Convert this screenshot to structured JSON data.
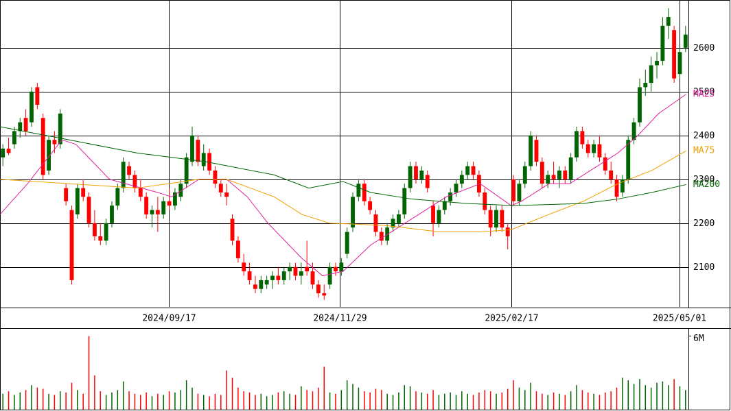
{
  "chart_data": [
    {
      "type": "candlestick",
      "up_color": "#006400",
      "down_color": "#ff0000",
      "xlim": [
        0,
        120
      ],
      "xticks": [
        {
          "value": 29.4,
          "label": "2024/09/17"
        },
        {
          "value": 59.2,
          "label": "2024/11/29"
        },
        {
          "value": 89.1,
          "label": "2025/02/17"
        },
        {
          "value": 118.5,
          "label": "2025/05/01"
        }
      ],
      "ylim": [
        2009,
        2709
      ],
      "yticks": [
        2100,
        2200,
        2300,
        2400,
        2500,
        2600
      ],
      "grid": true,
      "ohlc": [
        [
          2350,
          2380,
          2330,
          2370
        ],
        [
          2370,
          2395,
          2355,
          2360
        ],
        [
          2380,
          2420,
          2370,
          2410
        ],
        [
          2410,
          2440,
          2395,
          2430
        ],
        [
          2440,
          2460,
          2400,
          2410
        ],
        [
          2430,
          2510,
          2420,
          2500
        ],
        [
          2510,
          2520,
          2460,
          2470
        ],
        [
          2440,
          2450,
          2300,
          2310
        ],
        [
          2320,
          2400,
          2310,
          2390
        ],
        [
          2390,
          2410,
          2360,
          2380
        ],
        [
          2380,
          2460,
          2370,
          2450
        ],
        [
          2280,
          2290,
          2240,
          2250
        ],
        [
          2230,
          2240,
          2060,
          2070
        ],
        [
          2220,
          2290,
          2210,
          2280
        ],
        [
          2280,
          2300,
          2250,
          2260
        ],
        [
          2260,
          2270,
          2190,
          2200
        ],
        [
          2200,
          2230,
          2160,
          2170
        ],
        [
          2170,
          2200,
          2150,
          2160
        ],
        [
          2160,
          2210,
          2150,
          2200
        ],
        [
          2200,
          2250,
          2190,
          2240
        ],
        [
          2240,
          2290,
          2230,
          2280
        ],
        [
          2280,
          2350,
          2270,
          2340
        ],
        [
          2330,
          2340,
          2300,
          2310
        ],
        [
          2310,
          2320,
          2270,
          2280
        ],
        [
          2280,
          2300,
          2250,
          2260
        ],
        [
          2260,
          2270,
          2210,
          2220
        ],
        [
          2220,
          2240,
          2190,
          2230
        ],
        [
          2230,
          2260,
          2180,
          2220
        ],
        [
          2220,
          2260,
          2210,
          2250
        ],
        [
          2250,
          2280,
          2230,
          2240
        ],
        [
          2240,
          2280,
          2230,
          2270
        ],
        [
          2260,
          2300,
          2250,
          2290
        ],
        [
          2290,
          2360,
          2280,
          2350
        ],
        [
          2340,
          2420,
          2330,
          2400
        ],
        [
          2390,
          2400,
          2330,
          2340
        ],
        [
          2330,
          2380,
          2320,
          2360
        ],
        [
          2360,
          2370,
          2310,
          2320
        ],
        [
          2320,
          2330,
          2280,
          2290
        ],
        [
          2290,
          2300,
          2260,
          2270
        ],
        [
          2270,
          2290,
          2240,
          2260
        ],
        [
          2210,
          2220,
          2150,
          2160
        ],
        [
          2160,
          2170,
          2110,
          2120
        ],
        [
          2110,
          2130,
          2080,
          2090
        ],
        [
          2090,
          2110,
          2060,
          2070
        ],
        [
          2060,
          2080,
          2040,
          2050
        ],
        [
          2050,
          2080,
          2040,
          2070
        ],
        [
          2060,
          2080,
          2050,
          2070
        ],
        [
          2070,
          2090,
          2050,
          2080
        ],
        [
          2080,
          2100,
          2060,
          2070
        ],
        [
          2070,
          2100,
          2060,
          2090
        ],
        [
          2090,
          2110,
          2070,
          2100
        ],
        [
          2100,
          2110,
          2070,
          2080
        ],
        [
          2080,
          2110,
          2060,
          2090
        ],
        [
          2100,
          2160,
          2080,
          2090
        ],
        [
          2090,
          2110,
          2050,
          2060
        ],
        [
          2060,
          2070,
          2030,
          2040
        ],
        [
          2040,
          2060,
          2025,
          2035
        ],
        [
          2060,
          2110,
          2050,
          2100
        ],
        [
          2100,
          2110,
          2080,
          2090
        ],
        [
          2090,
          2120,
          2080,
          2110
        ],
        [
          2130,
          2190,
          2120,
          2180
        ],
        [
          2190,
          2270,
          2180,
          2260
        ],
        [
          2260,
          2300,
          2250,
          2290
        ],
        [
          2290,
          2300,
          2240,
          2250
        ],
        [
          2250,
          2260,
          2220,
          2230
        ],
        [
          2220,
          2230,
          2170,
          2180
        ],
        [
          2180,
          2190,
          2150,
          2160
        ],
        [
          2160,
          2200,
          2150,
          2190
        ],
        [
          2190,
          2220,
          2180,
          2210
        ],
        [
          2200,
          2230,
          2190,
          2220
        ],
        [
          2220,
          2290,
          2210,
          2280
        ],
        [
          2280,
          2340,
          2270,
          2330
        ],
        [
          2330,
          2340,
          2290,
          2300
        ],
        [
          2300,
          2330,
          2290,
          2320
        ],
        [
          2310,
          2320,
          2270,
          2280
        ],
        [
          2240,
          2250,
          2170,
          2200
        ],
        [
          2200,
          2240,
          2190,
          2230
        ],
        [
          2230,
          2260,
          2220,
          2250
        ],
        [
          2250,
          2280,
          2240,
          2270
        ],
        [
          2270,
          2300,
          2260,
          2290
        ],
        [
          2290,
          2320,
          2280,
          2310
        ],
        [
          2310,
          2340,
          2300,
          2330
        ],
        [
          2330,
          2340,
          2300,
          2310
        ],
        [
          2310,
          2320,
          2260,
          2270
        ],
        [
          2270,
          2280,
          2220,
          2230
        ],
        [
          2230,
          2240,
          2170,
          2190
        ],
        [
          2190,
          2240,
          2180,
          2230
        ],
        [
          2230,
          2240,
          2180,
          2190
        ],
        [
          2190,
          2200,
          2140,
          2170
        ],
        [
          2300,
          2310,
          2240,
          2250
        ],
        [
          2250,
          2300,
          2240,
          2290
        ],
        [
          2290,
          2340,
          2280,
          2330
        ],
        [
          2330,
          2410,
          2320,
          2400
        ],
        [
          2390,
          2400,
          2330,
          2340
        ],
        [
          2340,
          2350,
          2280,
          2290
        ],
        [
          2290,
          2320,
          2280,
          2310
        ],
        [
          2310,
          2340,
          2290,
          2300
        ],
        [
          2300,
          2330,
          2280,
          2320
        ],
        [
          2320,
          2330,
          2290,
          2300
        ],
        [
          2300,
          2360,
          2290,
          2350
        ],
        [
          2350,
          2420,
          2340,
          2410
        ],
        [
          2410,
          2420,
          2370,
          2380
        ],
        [
          2380,
          2390,
          2350,
          2360
        ],
        [
          2360,
          2390,
          2350,
          2380
        ],
        [
          2380,
          2400,
          2340,
          2350
        ],
        [
          2350,
          2360,
          2310,
          2320
        ],
        [
          2320,
          2340,
          2290,
          2300
        ],
        [
          2300,
          2310,
          2250,
          2260
        ],
        [
          2270,
          2310,
          2260,
          2300
        ],
        [
          2300,
          2400,
          2290,
          2390
        ],
        [
          2390,
          2440,
          2380,
          2430
        ],
        [
          2430,
          2530,
          2420,
          2510
        ],
        [
          2510,
          2550,
          2490,
          2520
        ],
        [
          2520,
          2580,
          2500,
          2560
        ],
        [
          2560,
          2590,
          2530,
          2570
        ],
        [
          2570,
          2670,
          2560,
          2650
        ],
        [
          2650,
          2690,
          2620,
          2670
        ],
        [
          2640,
          2650,
          2520,
          2530
        ],
        [
          2540,
          2600,
          2530,
          2590
        ],
        [
          2600,
          2650,
          2590,
          2630
        ]
      ],
      "series": [
        {
          "name": "MA25",
          "color": "#e0209a",
          "x": [
            0,
            4.8,
            10.8,
            13.2,
            19.1,
            27.5,
            29.9,
            34.7,
            39.5,
            43.1,
            46.7,
            52.6,
            56.2,
            59.8,
            64.6,
            69.4,
            74.2,
            77.8,
            83.7,
            89.1,
            90.9,
            95.7,
            99.3,
            102.9,
            107.7,
            111.2,
            114.8,
            119.6
          ],
          "values": [
            2220,
            2290,
            2390,
            2380,
            2300,
            2270,
            2260,
            2300,
            2300,
            2260,
            2200,
            2120,
            2080,
            2090,
            2150,
            2190,
            2230,
            2260,
            2290,
            2240,
            2250,
            2290,
            2290,
            2320,
            2360,
            2400,
            2450,
            2494
          ]
        },
        {
          "name": "MA75",
          "color": "#f0a000",
          "x": [
            0,
            12,
            23.9,
            34.7,
            39.5,
            47.8,
            52.6,
            57.4,
            67,
            76.6,
            83.7,
            89.1,
            95.7,
            101.7,
            107.7,
            113.6,
            119.6
          ],
          "values": [
            2300,
            2290,
            2280,
            2300,
            2300,
            2260,
            2220,
            2200,
            2195,
            2180,
            2180,
            2185,
            2220,
            2250,
            2290,
            2320,
            2365
          ]
        },
        {
          "name": "MA200",
          "color": "#006400",
          "x": [
            0,
            12,
            23.9,
            35.9,
            47.8,
            53.8,
            59.8,
            64.6,
            71.8,
            81.3,
            89.7,
            101.7,
            107.7,
            113.6,
            119.6
          ],
          "values": [
            2420,
            2390,
            2360,
            2340,
            2310,
            2280,
            2295,
            2270,
            2255,
            2245,
            2240,
            2245,
            2255,
            2270,
            2288
          ]
        }
      ]
    },
    {
      "type": "bar",
      "xlim": [
        0,
        120
      ],
      "ylim": [
        0,
        6600000
      ],
      "yticks": [
        {
          "value": 6000000,
          "label": "6M"
        }
      ],
      "values": [
        1300000,
        1500000,
        1200000,
        1400000,
        1600000,
        2000000,
        1800000,
        1700000,
        1300000,
        1200000,
        1500000,
        1400000,
        2200000,
        1600000,
        1300000,
        6000000,
        2800000,
        1500000,
        1200000,
        1400000,
        1600000,
        2300000,
        1500000,
        1300000,
        1200000,
        1400000,
        1100000,
        1300000,
        1200000,
        1500000,
        1400000,
        1600000,
        2400000,
        1800000,
        1300000,
        1200000,
        1100000,
        1300000,
        1200000,
        3200000,
        2600000,
        1800000,
        1500000,
        1400000,
        1200000,
        1300000,
        1100000,
        1200000,
        1400000,
        1500000,
        1300000,
        1200000,
        1900000,
        1600000,
        1500000,
        1800000,
        3500000,
        1400000,
        1300000,
        1600000,
        2400000,
        2100000,
        1800000,
        1500000,
        1400000,
        1700000,
        1600000,
        1300000,
        1200000,
        1400000,
        2000000,
        1900000,
        1500000,
        1400000,
        1300000,
        1600000,
        1200000,
        1300000,
        1400000,
        1200000,
        1500000,
        1300000,
        1200000,
        1400000,
        1600000,
        1500000,
        1300000,
        1400000,
        1700000,
        2400000,
        1800000,
        1600000,
        2200000,
        1500000,
        1300000,
        1200000,
        1400000,
        1300000,
        1200000,
        1500000,
        2000000,
        1600000,
        1400000,
        1300000,
        1200000,
        1400000,
        1500000,
        1800000,
        2600000,
        2400000,
        2100000,
        2500000,
        2000000,
        1800000,
        2200000,
        2300000,
        2000000,
        2500000,
        1900000,
        1600000
      ]
    }
  ]
}
